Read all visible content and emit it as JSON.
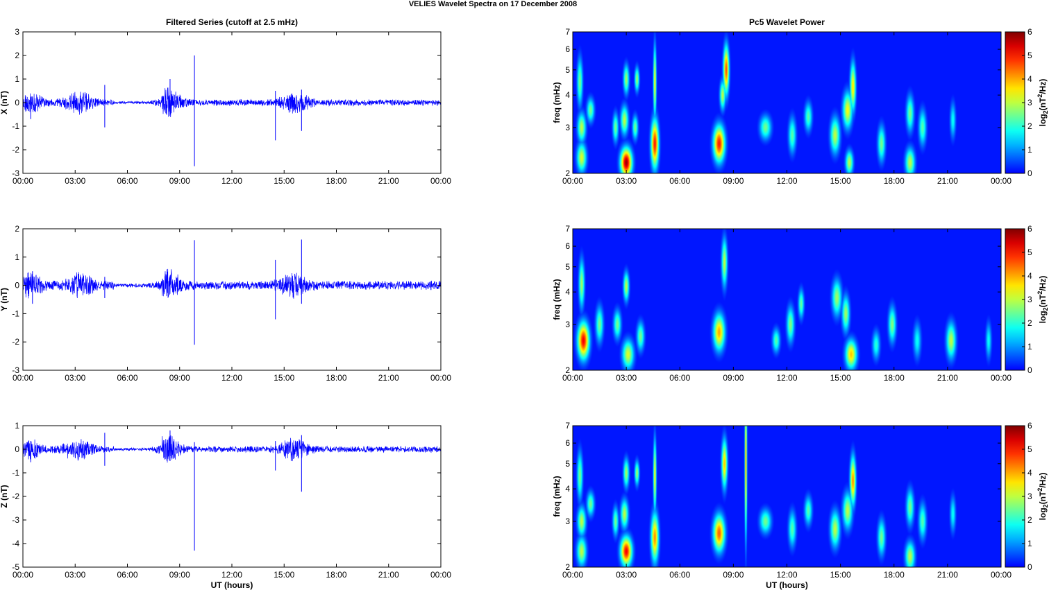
{
  "figure": {
    "title": "VELIES Wavelet Spectra on 17 December  2008",
    "left_column_title": "Filtered Series (cutoff at 2.5 mHz)",
    "right_column_title": "Pc5 Wavelet Power",
    "xlabel": "UT (hours)"
  },
  "chart_data": [
    {
      "type": "line",
      "component": "X",
      "title": "Filtered Series (cutoff at 2.5 mHz)",
      "ylabel": "X (nT)",
      "xlabel": "",
      "xlim": [
        0,
        24
      ],
      "ylim": [
        -3,
        3
      ],
      "yticks": [
        -3,
        -2,
        -1,
        0,
        1,
        2,
        3
      ],
      "xtick_labels": [
        "00:00",
        "03:00",
        "06:00",
        "09:00",
        "12:00",
        "15:00",
        "18:00",
        "21:00",
        "00:00"
      ],
      "line_color": "#0000ff",
      "noise_amplitude": 0.12,
      "bursts": [
        {
          "t": 0.5,
          "amp": 0.3,
          "width": 0.6
        },
        {
          "t": 3.2,
          "amp": 0.35,
          "width": 0.8
        },
        {
          "t": 8.3,
          "amp": 0.55,
          "width": 0.7
        },
        {
          "t": 15.6,
          "amp": 0.35,
          "width": 0.8
        }
      ],
      "spikes": [
        {
          "t": 0.45,
          "max": 0.25,
          "min": -0.7
        },
        {
          "t": 4.7,
          "max": 0.75,
          "min": -1.05
        },
        {
          "t": 8.45,
          "max": 1.0,
          "min": -0.5
        },
        {
          "t": 9.85,
          "max": 2.0,
          "min": -2.7
        },
        {
          "t": 14.5,
          "max": 0.5,
          "min": -1.6
        },
        {
          "t": 16.0,
          "max": 0.55,
          "min": -1.2
        }
      ]
    },
    {
      "type": "line",
      "component": "Y",
      "title": "",
      "ylabel": "Y (nT)",
      "xlabel": "",
      "xlim": [
        0,
        24
      ],
      "ylim": [
        -3,
        2
      ],
      "yticks": [
        -3,
        -2,
        -1,
        0,
        1,
        2
      ],
      "xtick_labels": [
        "00:00",
        "03:00",
        "06:00",
        "09:00",
        "12:00",
        "15:00",
        "18:00",
        "21:00",
        "00:00"
      ],
      "line_color": "#0000ff",
      "noise_amplitude": 0.14,
      "bursts": [
        {
          "t": 0.5,
          "amp": 0.35,
          "width": 0.6
        },
        {
          "t": 3.3,
          "amp": 0.3,
          "width": 0.8
        },
        {
          "t": 8.4,
          "amp": 0.4,
          "width": 0.7
        },
        {
          "t": 15.5,
          "amp": 0.3,
          "width": 0.8
        }
      ],
      "spikes": [
        {
          "t": 0.55,
          "max": 0.5,
          "min": -0.65
        },
        {
          "t": 4.7,
          "max": 0.3,
          "min": -0.45
        },
        {
          "t": 9.85,
          "max": 1.6,
          "min": -2.1
        },
        {
          "t": 14.5,
          "max": 0.9,
          "min": -1.2
        },
        {
          "t": 16.0,
          "max": 1.62,
          "min": -0.65
        }
      ]
    },
    {
      "type": "line",
      "component": "Z",
      "title": "",
      "ylabel": "Z (nT)",
      "xlabel": "UT (hours)",
      "xlim": [
        0,
        24
      ],
      "ylim": [
        -5,
        1
      ],
      "yticks": [
        -5,
        -4,
        -3,
        -2,
        -1,
        0,
        1
      ],
      "xtick_labels": [
        "00:00",
        "03:00",
        "06:00",
        "09:00",
        "12:00",
        "15:00",
        "18:00",
        "21:00",
        "00:00"
      ],
      "line_color": "#0000ff",
      "noise_amplitude": 0.12,
      "bursts": [
        {
          "t": 0.5,
          "amp": 0.3,
          "width": 0.6
        },
        {
          "t": 3.1,
          "amp": 0.35,
          "width": 0.8
        },
        {
          "t": 8.3,
          "amp": 0.45,
          "width": 0.7
        },
        {
          "t": 15.6,
          "amp": 0.35,
          "width": 0.8
        }
      ],
      "spikes": [
        {
          "t": 0.45,
          "max": 0.35,
          "min": -0.55
        },
        {
          "t": 4.7,
          "max": 0.7,
          "min": -0.7
        },
        {
          "t": 8.45,
          "max": 0.8,
          "min": -0.5
        },
        {
          "t": 9.85,
          "max": 0.3,
          "min": -4.3
        },
        {
          "t": 14.5,
          "max": 0.35,
          "min": -0.9
        },
        {
          "t": 16.0,
          "max": 0.6,
          "min": -1.8
        }
      ]
    },
    {
      "type": "heatmap",
      "component": "X",
      "title": "Pc5 Wavelet Power",
      "ylabel": "freq (mHz)",
      "xlabel": "",
      "xlim": [
        0,
        24
      ],
      "ylim": [
        2,
        7
      ],
      "yscale": "log",
      "yticks": [
        2,
        3,
        4,
        5,
        6,
        7
      ],
      "xtick_labels": [
        "00:00",
        "03:00",
        "06:00",
        "09:00",
        "12:00",
        "15:00",
        "18:00",
        "21:00",
        "00:00"
      ],
      "colorbar": {
        "label": "log2(nT^2/Hz)",
        "label_base": "log",
        "label_sub": "2",
        "label_mid": "(nT",
        "label_sup": "2",
        "label_end": "/Hz)",
        "range": [
          0,
          6
        ],
        "ticks": [
          0,
          1,
          2,
          3,
          4,
          5,
          6
        ],
        "colormap": "jet"
      },
      "blobs": [
        {
          "t": 0.5,
          "f": 2.3,
          "a": 3.2,
          "wt": 0.25,
          "wf": 0.12
        },
        {
          "t": 0.5,
          "f": 3.0,
          "a": 3.0,
          "wt": 0.22,
          "wf": 0.12
        },
        {
          "t": 0.4,
          "f": 4.5,
          "a": 2.5,
          "wt": 0.15,
          "wf": 0.2
        },
        {
          "t": 1.0,
          "f": 3.5,
          "a": 2.5,
          "wt": 0.2,
          "wf": 0.1
        },
        {
          "t": 2.4,
          "f": 3.0,
          "a": 2.5,
          "wt": 0.15,
          "wf": 0.12
        },
        {
          "t": 3.0,
          "f": 2.2,
          "a": 5.8,
          "wt": 0.3,
          "wf": 0.12
        },
        {
          "t": 2.9,
          "f": 3.2,
          "a": 3.0,
          "wt": 0.2,
          "wf": 0.12
        },
        {
          "t": 3.0,
          "f": 4.6,
          "a": 2.8,
          "wt": 0.15,
          "wf": 0.12
        },
        {
          "t": 3.5,
          "f": 3.0,
          "a": 2.5,
          "wt": 0.15,
          "wf": 0.1
        },
        {
          "t": 3.6,
          "f": 4.6,
          "a": 2.8,
          "wt": 0.12,
          "wf": 0.1
        },
        {
          "t": 4.6,
          "f": 2.6,
          "a": 5.0,
          "wt": 0.2,
          "wf": 0.2
        },
        {
          "t": 4.6,
          "f": 4.5,
          "a": 3.5,
          "wt": 0.08,
          "wf": 0.3
        },
        {
          "t": 8.2,
          "f": 2.6,
          "a": 5.0,
          "wt": 0.3,
          "wf": 0.15
        },
        {
          "t": 8.4,
          "f": 4.0,
          "a": 3.0,
          "wt": 0.15,
          "wf": 0.12
        },
        {
          "t": 8.6,
          "f": 5.0,
          "a": 4.6,
          "wt": 0.15,
          "wf": 0.2
        },
        {
          "t": 10.8,
          "f": 3.0,
          "a": 2.5,
          "wt": 0.3,
          "wf": 0.1
        },
        {
          "t": 12.3,
          "f": 2.8,
          "a": 2.3,
          "wt": 0.2,
          "wf": 0.15
        },
        {
          "t": 13.2,
          "f": 3.3,
          "a": 2.3,
          "wt": 0.2,
          "wf": 0.12
        },
        {
          "t": 14.7,
          "f": 2.8,
          "a": 3.0,
          "wt": 0.25,
          "wf": 0.15
        },
        {
          "t": 15.4,
          "f": 3.5,
          "a": 3.4,
          "wt": 0.25,
          "wf": 0.15
        },
        {
          "t": 15.7,
          "f": 4.3,
          "a": 3.6,
          "wt": 0.15,
          "wf": 0.2
        },
        {
          "t": 15.5,
          "f": 2.2,
          "a": 3.0,
          "wt": 0.2,
          "wf": 0.1
        },
        {
          "t": 17.3,
          "f": 2.6,
          "a": 2.5,
          "wt": 0.2,
          "wf": 0.15
        },
        {
          "t": 18.9,
          "f": 2.2,
          "a": 3.0,
          "wt": 0.25,
          "wf": 0.12
        },
        {
          "t": 18.9,
          "f": 3.4,
          "a": 2.5,
          "wt": 0.2,
          "wf": 0.15
        },
        {
          "t": 19.6,
          "f": 3.0,
          "a": 2.3,
          "wt": 0.2,
          "wf": 0.15
        },
        {
          "t": 21.3,
          "f": 3.2,
          "a": 1.8,
          "wt": 0.15,
          "wf": 0.15
        }
      ]
    },
    {
      "type": "heatmap",
      "component": "Y",
      "title": "",
      "ylabel": "freq (mHz)",
      "xlabel": "",
      "xlim": [
        0,
        24
      ],
      "ylim": [
        2,
        7
      ],
      "yscale": "log",
      "yticks": [
        2,
        3,
        4,
        5,
        6,
        7
      ],
      "xtick_labels": [
        "00:00",
        "03:00",
        "06:00",
        "09:00",
        "12:00",
        "15:00",
        "18:00",
        "21:00",
        "00:00"
      ],
      "colorbar": {
        "label": "log2(nT^2/Hz)",
        "label_base": "log",
        "label_sub": "2",
        "label_mid": "(nT",
        "label_sup": "2",
        "label_end": "/Hz)",
        "range": [
          0,
          6
        ],
        "ticks": [
          0,
          1,
          2,
          3,
          4,
          5,
          6
        ],
        "colormap": "jet"
      },
      "blobs": [
        {
          "t": 0.6,
          "f": 2.6,
          "a": 5.2,
          "wt": 0.3,
          "wf": 0.15
        },
        {
          "t": 0.5,
          "f": 4.3,
          "a": 2.8,
          "wt": 0.15,
          "wf": 0.2
        },
        {
          "t": 1.5,
          "f": 3.0,
          "a": 2.5,
          "wt": 0.2,
          "wf": 0.15
        },
        {
          "t": 2.5,
          "f": 3.0,
          "a": 2.5,
          "wt": 0.2,
          "wf": 0.12
        },
        {
          "t": 3.1,
          "f": 2.3,
          "a": 3.2,
          "wt": 0.3,
          "wf": 0.12
        },
        {
          "t": 3.0,
          "f": 4.2,
          "a": 3.0,
          "wt": 0.15,
          "wf": 0.12
        },
        {
          "t": 3.8,
          "f": 2.7,
          "a": 2.5,
          "wt": 0.2,
          "wf": 0.12
        },
        {
          "t": 8.2,
          "f": 2.8,
          "a": 4.0,
          "wt": 0.3,
          "wf": 0.15
        },
        {
          "t": 8.5,
          "f": 5.2,
          "a": 3.0,
          "wt": 0.15,
          "wf": 0.2
        },
        {
          "t": 11.4,
          "f": 2.6,
          "a": 2.3,
          "wt": 0.2,
          "wf": 0.1
        },
        {
          "t": 12.2,
          "f": 3.0,
          "a": 2.6,
          "wt": 0.2,
          "wf": 0.15
        },
        {
          "t": 12.8,
          "f": 3.6,
          "a": 2.4,
          "wt": 0.15,
          "wf": 0.12
        },
        {
          "t": 14.8,
          "f": 3.8,
          "a": 2.8,
          "wt": 0.25,
          "wf": 0.15
        },
        {
          "t": 15.6,
          "f": 2.3,
          "a": 3.8,
          "wt": 0.3,
          "wf": 0.12
        },
        {
          "t": 15.3,
          "f": 3.3,
          "a": 2.8,
          "wt": 0.2,
          "wf": 0.15
        },
        {
          "t": 17.0,
          "f": 2.5,
          "a": 2.0,
          "wt": 0.2,
          "wf": 0.12
        },
        {
          "t": 17.9,
          "f": 3.0,
          "a": 2.6,
          "wt": 0.2,
          "wf": 0.15
        },
        {
          "t": 19.3,
          "f": 2.6,
          "a": 1.8,
          "wt": 0.2,
          "wf": 0.15
        },
        {
          "t": 21.2,
          "f": 2.6,
          "a": 3.0,
          "wt": 0.25,
          "wf": 0.15
        },
        {
          "t": 23.3,
          "f": 2.6,
          "a": 1.8,
          "wt": 0.15,
          "wf": 0.15
        }
      ]
    },
    {
      "type": "heatmap",
      "component": "Z",
      "title": "",
      "ylabel": "freq (mHz)",
      "xlabel": "UT (hours)",
      "xlim": [
        0,
        24
      ],
      "ylim": [
        2,
        7
      ],
      "yscale": "log",
      "yticks": [
        2,
        3,
        4,
        5,
        6,
        7
      ],
      "xtick_labels": [
        "00:00",
        "03:00",
        "06:00",
        "09:00",
        "12:00",
        "15:00",
        "18:00",
        "21:00",
        "00:00"
      ],
      "colorbar": {
        "label": "log2(nT^2/Hz)",
        "label_base": "log",
        "label_sub": "2",
        "label_mid": "(nT",
        "label_sup": "2",
        "label_end": "/Hz)",
        "range": [
          0,
          6
        ],
        "ticks": [
          0,
          1,
          2,
          3,
          4,
          5,
          6
        ],
        "colormap": "jet"
      },
      "blobs": [
        {
          "t": 0.5,
          "f": 2.3,
          "a": 3.0,
          "wt": 0.25,
          "wf": 0.12
        },
        {
          "t": 0.5,
          "f": 3.0,
          "a": 3.0,
          "wt": 0.22,
          "wf": 0.12
        },
        {
          "t": 0.4,
          "f": 4.5,
          "a": 2.5,
          "wt": 0.15,
          "wf": 0.2
        },
        {
          "t": 1.0,
          "f": 3.5,
          "a": 2.5,
          "wt": 0.2,
          "wf": 0.1
        },
        {
          "t": 2.4,
          "f": 3.0,
          "a": 2.5,
          "wt": 0.15,
          "wf": 0.12
        },
        {
          "t": 3.0,
          "f": 2.3,
          "a": 5.2,
          "wt": 0.3,
          "wf": 0.12
        },
        {
          "t": 2.9,
          "f": 3.2,
          "a": 3.0,
          "wt": 0.2,
          "wf": 0.12
        },
        {
          "t": 3.0,
          "f": 4.6,
          "a": 2.8,
          "wt": 0.15,
          "wf": 0.12
        },
        {
          "t": 3.6,
          "f": 4.6,
          "a": 2.8,
          "wt": 0.12,
          "wf": 0.1
        },
        {
          "t": 4.6,
          "f": 2.6,
          "a": 4.2,
          "wt": 0.2,
          "wf": 0.2
        },
        {
          "t": 4.6,
          "f": 4.5,
          "a": 3.5,
          "wt": 0.08,
          "wf": 0.3
        },
        {
          "t": 8.2,
          "f": 2.7,
          "a": 4.5,
          "wt": 0.3,
          "wf": 0.15
        },
        {
          "t": 8.5,
          "f": 5.0,
          "a": 3.8,
          "wt": 0.15,
          "wf": 0.2
        },
        {
          "t": 9.7,
          "f": 5.0,
          "a": 4.2,
          "wt": 0.06,
          "wf": 0.6
        },
        {
          "t": 10.8,
          "f": 3.0,
          "a": 2.5,
          "wt": 0.3,
          "wf": 0.1
        },
        {
          "t": 12.3,
          "f": 2.8,
          "a": 2.3,
          "wt": 0.2,
          "wf": 0.15
        },
        {
          "t": 13.2,
          "f": 3.3,
          "a": 2.3,
          "wt": 0.2,
          "wf": 0.12
        },
        {
          "t": 14.7,
          "f": 2.8,
          "a": 3.0,
          "wt": 0.25,
          "wf": 0.15
        },
        {
          "t": 15.7,
          "f": 4.3,
          "a": 4.2,
          "wt": 0.15,
          "wf": 0.2
        },
        {
          "t": 15.4,
          "f": 3.3,
          "a": 3.0,
          "wt": 0.25,
          "wf": 0.15
        },
        {
          "t": 17.3,
          "f": 2.6,
          "a": 2.5,
          "wt": 0.2,
          "wf": 0.15
        },
        {
          "t": 18.9,
          "f": 2.2,
          "a": 3.0,
          "wt": 0.25,
          "wf": 0.12
        },
        {
          "t": 18.9,
          "f": 3.4,
          "a": 2.5,
          "wt": 0.2,
          "wf": 0.15
        },
        {
          "t": 19.6,
          "f": 3.0,
          "a": 2.3,
          "wt": 0.2,
          "wf": 0.15
        },
        {
          "t": 21.3,
          "f": 3.2,
          "a": 1.8,
          "wt": 0.15,
          "wf": 0.15
        }
      ]
    }
  ]
}
